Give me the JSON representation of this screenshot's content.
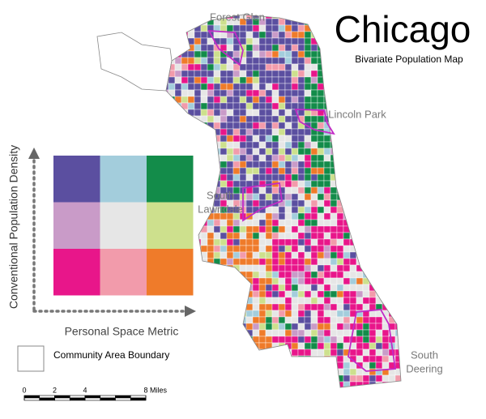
{
  "title": "Chicago",
  "subtitle": "Bivariate Population Map",
  "places": [
    {
      "lines": [
        "Forest Glen"
      ]
    },
    {
      "lines": [
        "Lincoln Park"
      ]
    },
    {
      "lines": [
        "South",
        "Lawndale"
      ]
    },
    {
      "lines": [
        "South",
        "Deering"
      ]
    }
  ],
  "legend": {
    "y_label": "Conventional Population Density",
    "x_label": "Personal Space Metric",
    "colors": [
      [
        "#5b4fa0",
        "#a3cddc",
        "#138c4a"
      ],
      [
        "#c99bc8",
        "#e6e6e6",
        "#cde08d"
      ],
      [
        "#e8168a",
        "#f29bab",
        "#ef7b2a"
      ]
    ]
  },
  "boundary_legend": "Community Area Boundary",
  "boundary_color": "#c22bc6",
  "scale_bar": {
    "ticks": [
      0,
      2,
      4,
      8
    ],
    "unit": "Miles"
  }
}
